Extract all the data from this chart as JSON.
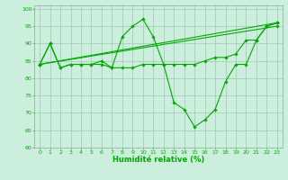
{
  "title": "",
  "xlabel": "Humidité relative (%)",
  "ylabel": "",
  "bg_color": "#cceedd",
  "grid_color": "#aaccbb",
  "line_color": "#00aa00",
  "ylim": [
    60,
    101
  ],
  "xlim": [
    -0.5,
    23.5
  ],
  "yticks": [
    60,
    65,
    70,
    75,
    80,
    85,
    90,
    95,
    100
  ],
  "xticks": [
    0,
    1,
    2,
    3,
    4,
    5,
    6,
    7,
    8,
    9,
    10,
    11,
    12,
    13,
    14,
    15,
    16,
    17,
    18,
    19,
    20,
    21,
    22,
    23
  ],
  "lines": [
    {
      "x": [
        0,
        1,
        2,
        3,
        4,
        5,
        6,
        7,
        8,
        9,
        10,
        11,
        12,
        13,
        14,
        15,
        16,
        17,
        18,
        19,
        20,
        21,
        22,
        23
      ],
      "y": [
        84,
        90,
        83,
        84,
        84,
        84,
        84,
        83,
        92,
        95,
        97,
        92,
        84,
        84,
        84,
        84,
        85,
        86,
        86,
        87,
        91,
        91,
        95,
        96
      ]
    },
    {
      "x": [
        0,
        1,
        2,
        3,
        4,
        5,
        6,
        7,
        8,
        9,
        10,
        11,
        12,
        13,
        14,
        15,
        16,
        17,
        18,
        19,
        20,
        21,
        22,
        23
      ],
      "y": [
        84,
        90,
        83,
        84,
        84,
        84,
        85,
        83,
        83,
        83,
        84,
        84,
        84,
        73,
        71,
        66,
        68,
        71,
        79,
        84,
        84,
        91,
        95,
        96
      ]
    },
    {
      "x": [
        0,
        23
      ],
      "y": [
        84,
        95
      ]
    },
    {
      "x": [
        0,
        23
      ],
      "y": [
        84,
        96
      ]
    }
  ]
}
